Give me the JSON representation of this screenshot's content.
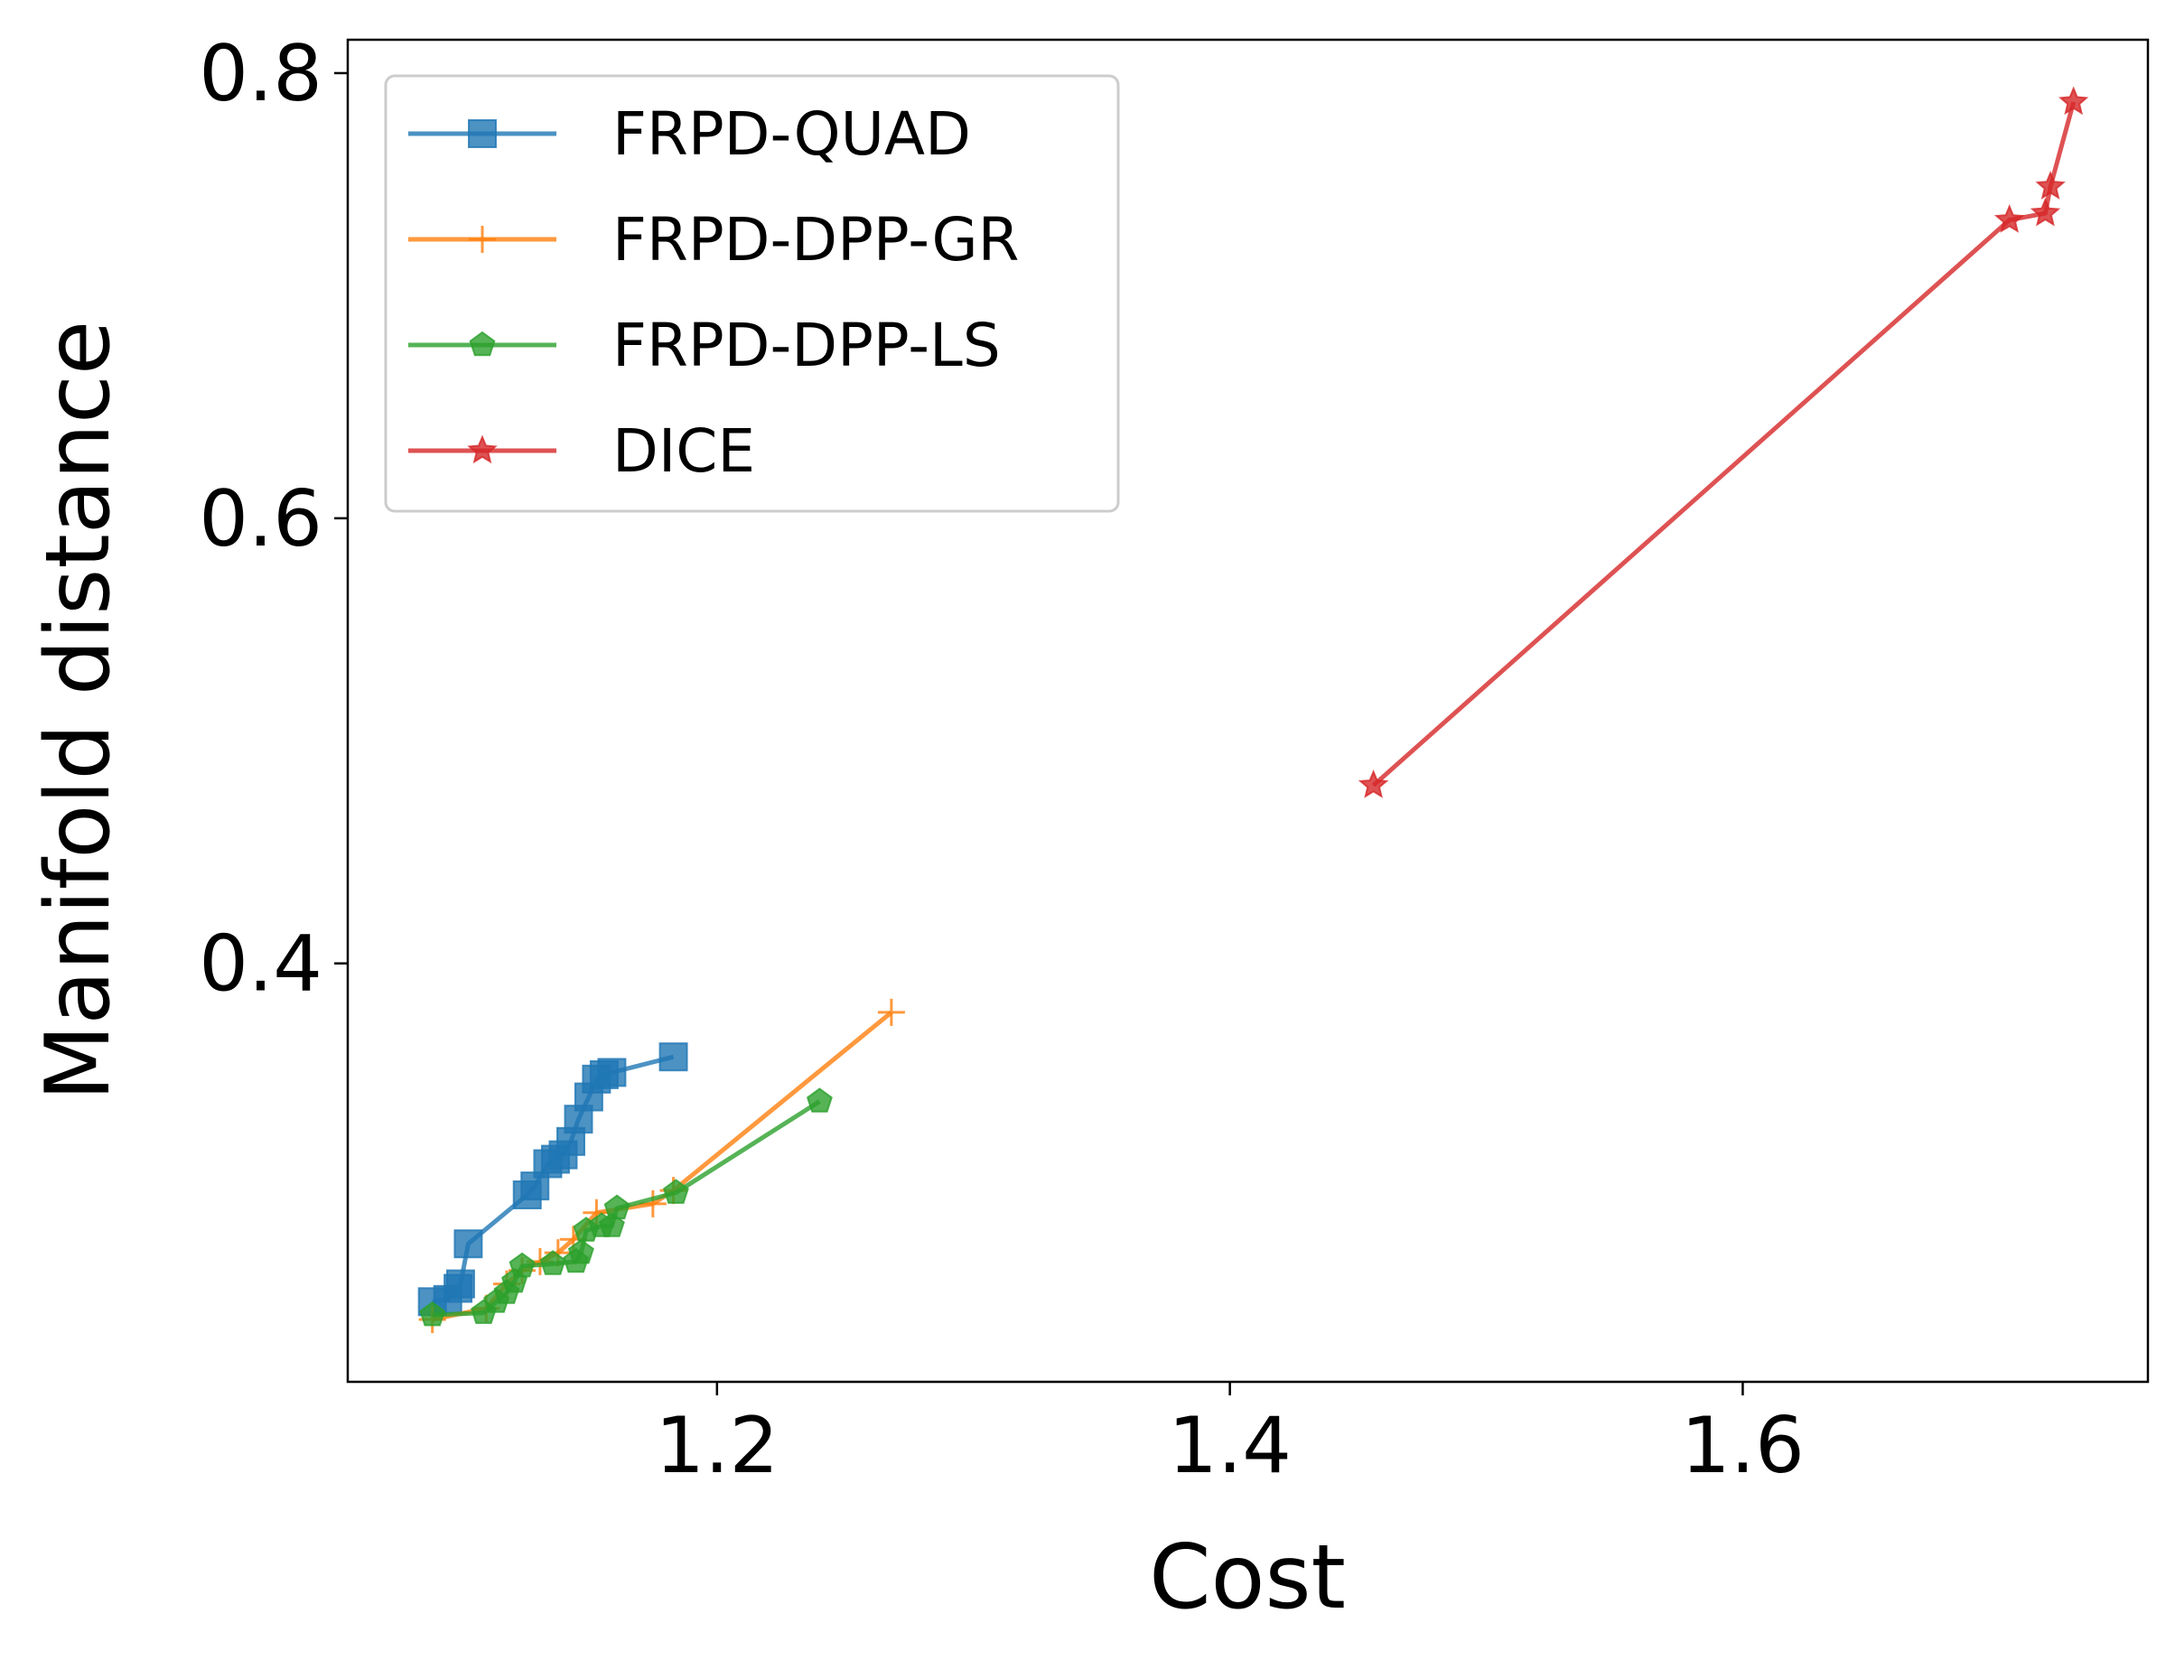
{
  "chart_data": {
    "type": "line",
    "xlabel": "Cost",
    "ylabel": "Manifold distance",
    "xlim": [
      1.056,
      1.758
    ],
    "ylim": [
      0.212,
      0.815
    ],
    "xticks": [
      1.2,
      1.4,
      1.6
    ],
    "yticks": [
      0.4,
      0.6,
      0.8
    ],
    "xtick_labels": [
      "1.2",
      "1.4",
      "1.6"
    ],
    "ytick_labels": [
      "0.4",
      "0.6",
      "0.8"
    ],
    "grid": false,
    "legend_position": "upper left",
    "series": [
      {
        "name": "FRPD-QUAD",
        "color": "#1f77b4",
        "marker": "square",
        "x": [
          1.089,
          1.095,
          1.099,
          1.1,
          1.103,
          1.126,
          1.129,
          1.134,
          1.137,
          1.14,
          1.143,
          1.146,
          1.15,
          1.153,
          1.156,
          1.159,
          1.183
        ],
        "y": [
          0.248,
          0.249,
          0.254,
          0.256,
          0.274,
          0.296,
          0.3,
          0.31,
          0.312,
          0.314,
          0.32,
          0.33,
          0.34,
          0.348,
          0.35,
          0.351,
          0.358
        ]
      },
      {
        "name": "FRPD-DPP-GR",
        "color": "#ff7f0e",
        "marker": "plus",
        "x": [
          1.089,
          1.11,
          1.118,
          1.124,
          1.131,
          1.138,
          1.144,
          1.153,
          1.175,
          1.183,
          1.268
        ],
        "y": [
          0.24,
          0.245,
          0.256,
          0.262,
          0.266,
          0.27,
          0.276,
          0.288,
          0.292,
          0.298,
          0.378
        ]
      },
      {
        "name": "FRPD-DPP-LS",
        "color": "#2ca02c",
        "marker": "pentagon",
        "x": [
          1.089,
          1.109,
          1.114,
          1.118,
          1.121,
          1.124,
          1.136,
          1.145,
          1.147,
          1.149,
          1.155,
          1.159,
          1.161,
          1.184,
          1.24
        ],
        "y": [
          0.242,
          0.243,
          0.248,
          0.252,
          0.257,
          0.264,
          0.265,
          0.266,
          0.27,
          0.28,
          0.282,
          0.282,
          0.29,
          0.297,
          0.338
        ]
      },
      {
        "name": "DICE",
        "color": "#d62728",
        "marker": "star",
        "x": [
          1.456,
          1.704,
          1.718,
          1.72,
          1.729
        ],
        "y": [
          0.48,
          0.734,
          0.737,
          0.749,
          0.787
        ]
      }
    ]
  }
}
